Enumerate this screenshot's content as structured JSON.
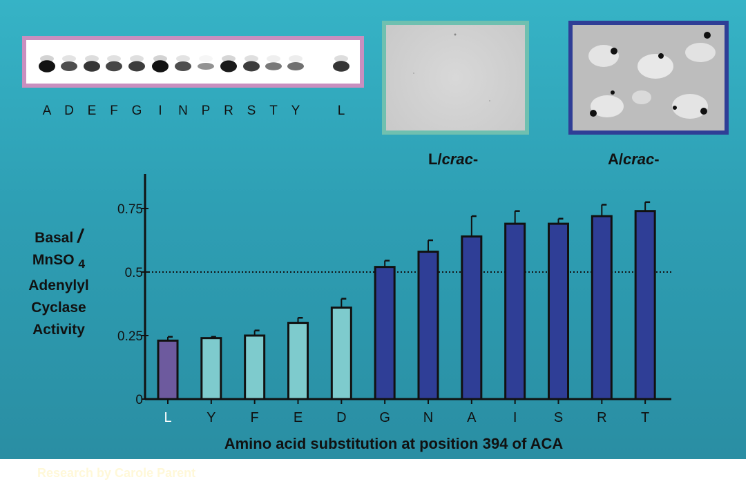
{
  "gel": {
    "lanes": [
      "A",
      "D",
      "E",
      "F",
      "G",
      "I",
      "N",
      "P",
      "R",
      "S",
      "T",
      "Y",
      "L"
    ],
    "band_intensity": [
      0.95,
      0.6,
      0.75,
      0.65,
      0.7,
      0.95,
      0.6,
      0.2,
      0.9,
      0.7,
      0.35,
      0.4,
      0.75
    ]
  },
  "captions": {
    "l_prefix": "L/",
    "l_italic": "crac",
    "l_suffix": "-",
    "a_prefix": "A/",
    "a_italic": "crac",
    "a_suffix": "-"
  },
  "footer": {
    "credit": "Research by Carole Parent"
  },
  "chart_data": {
    "type": "bar",
    "categories": [
      "L",
      "Y",
      "F",
      "E",
      "D",
      "G",
      "N",
      "A",
      "I",
      "S",
      "R",
      "T"
    ],
    "values": [
      0.23,
      0.24,
      0.25,
      0.3,
      0.36,
      0.52,
      0.58,
      0.64,
      0.69,
      0.69,
      0.72,
      0.74
    ],
    "errors": [
      0.015,
      0.005,
      0.02,
      0.02,
      0.035,
      0.025,
      0.045,
      0.08,
      0.05,
      0.02,
      0.045,
      0.035
    ],
    "bar_colors": [
      "#6d5a9e",
      "#7ecbcd",
      "#7ecbcd",
      "#7ecbcd",
      "#7ecbcd",
      "#2f3e96",
      "#2f3e96",
      "#2f3e96",
      "#2f3e96",
      "#2f3e96",
      "#2f3e96",
      "#2f3e96"
    ],
    "ylabel_lines": [
      "Basal",
      "MnSO",
      "Adenylyl",
      "Cyclase",
      "Activity"
    ],
    "ylabel_slash": "/",
    "ylabel_subscript": "4",
    "xlabel": "Amino acid substitution at position 394 of ACA",
    "yticks": [
      {
        "value": 0,
        "label": "0"
      },
      {
        "value": 0.25,
        "label": "0.25"
      },
      {
        "value": 0.5,
        "label": "0.5"
      },
      {
        "value": 0.75,
        "label": "0.75"
      }
    ],
    "ylim": [
      0,
      0.85
    ],
    "reference_line": 0.5,
    "grid": false
  }
}
